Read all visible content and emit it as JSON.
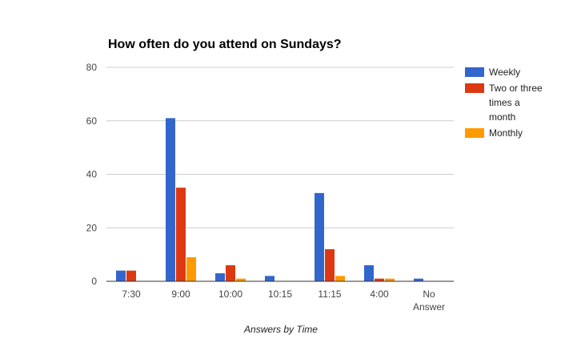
{
  "chart_data": {
    "type": "bar",
    "title": "How often do you attend on Sundays?",
    "xlabel": "Answers by Time",
    "ylabel": "",
    "ylim": [
      0,
      80
    ],
    "yticks": [
      0,
      20,
      40,
      60,
      80
    ],
    "grid": true,
    "legend_position": "right",
    "categories": [
      "7:30",
      "9:00",
      "10:00",
      "10:15",
      "11:15",
      "4:00",
      "No Answer"
    ],
    "category_lines": [
      [
        "7:30"
      ],
      [
        "9:00"
      ],
      [
        "10:00"
      ],
      [
        "10:15"
      ],
      [
        "11:15"
      ],
      [
        "4:00"
      ],
      [
        "No",
        "Answer"
      ]
    ],
    "series": [
      {
        "name": "Weekly",
        "name_lines": [
          "Weekly"
        ],
        "color": "#3366cc",
        "values": [
          4,
          61,
          3,
          2,
          33,
          6,
          1
        ]
      },
      {
        "name": "Two or three times a month",
        "name_lines": [
          "Two or three",
          "times a",
          "month"
        ],
        "color": "#dc3912",
        "values": [
          4,
          35,
          6,
          0,
          12,
          1,
          0
        ]
      },
      {
        "name": "Monthly",
        "name_lines": [
          "Monthly"
        ],
        "color": "#ff9900",
        "values": [
          0,
          9,
          1,
          0,
          2,
          1,
          0
        ]
      }
    ]
  }
}
